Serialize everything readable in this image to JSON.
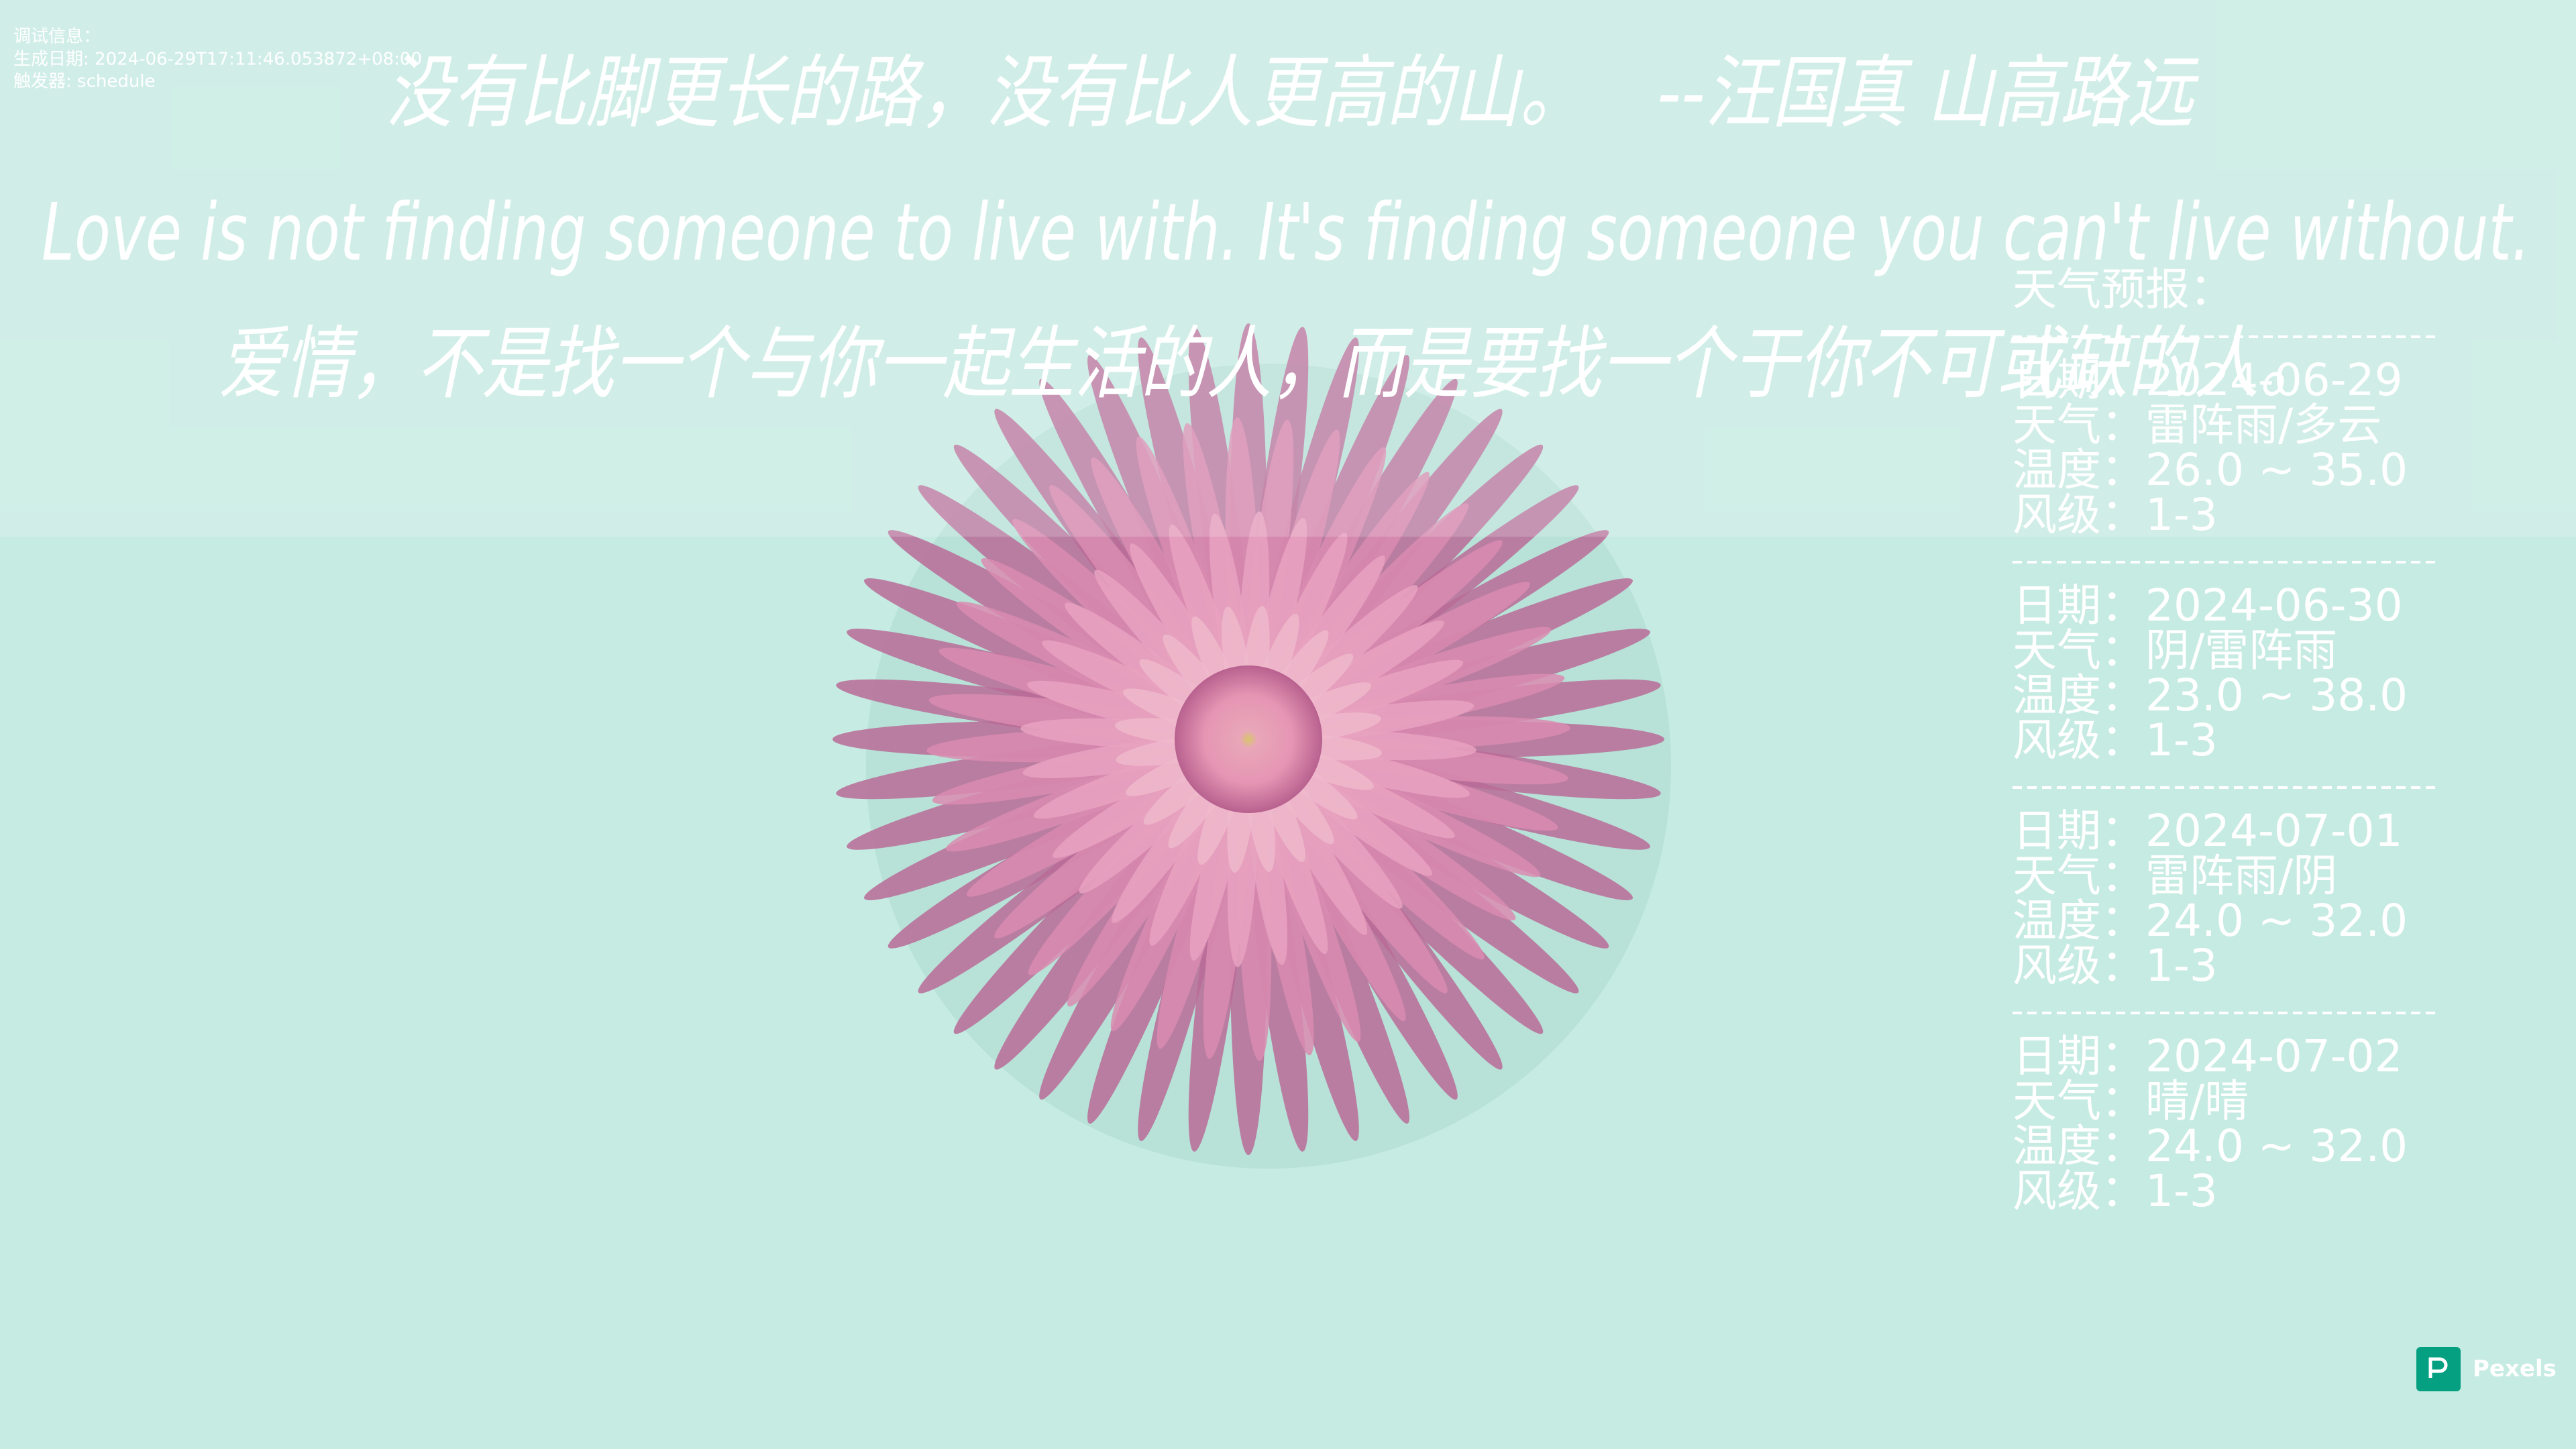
{
  "debug": {
    "title": "调试信息：",
    "generated": "生成日期: 2024-06-29T17:11:46.053872+08:00",
    "trigger": "触发器: schedule"
  },
  "quote": {
    "text": "没有比脚更长的路，没有比人更高的山。",
    "source": "--汪国真 山高路远",
    "english": "Love is not finding someone to live with. It's finding someone you can't live without.",
    "chinese": "爱情，不是找一个与你一起生活的人，而是要找一个于你不可或缺的人。"
  },
  "forecast": {
    "title": "天气预报：",
    "days": [
      {
        "date": "日期：2024-06-29",
        "weather": "天气：雷阵雨/多云",
        "temperature": "温度：26.0 ~ 35.0",
        "wind": "风级：1-3"
      },
      {
        "date": "日期：2024-06-30",
        "weather": "天气：阴/雷阵雨",
        "temperature": "温度：23.0 ~ 38.0",
        "wind": "风级：1-3"
      },
      {
        "date": "日期：2024-07-01",
        "weather": "天气：雷阵雨/阴",
        "temperature": "温度：24.0 ~ 32.0",
        "wind": "风级：1-3"
      },
      {
        "date": "日期：2024-07-02",
        "weather": "天气：晴/晴",
        "temperature": "温度：24.0 ~ 32.0",
        "wind": "风级：1-3"
      }
    ]
  },
  "credit": "Pexels"
}
